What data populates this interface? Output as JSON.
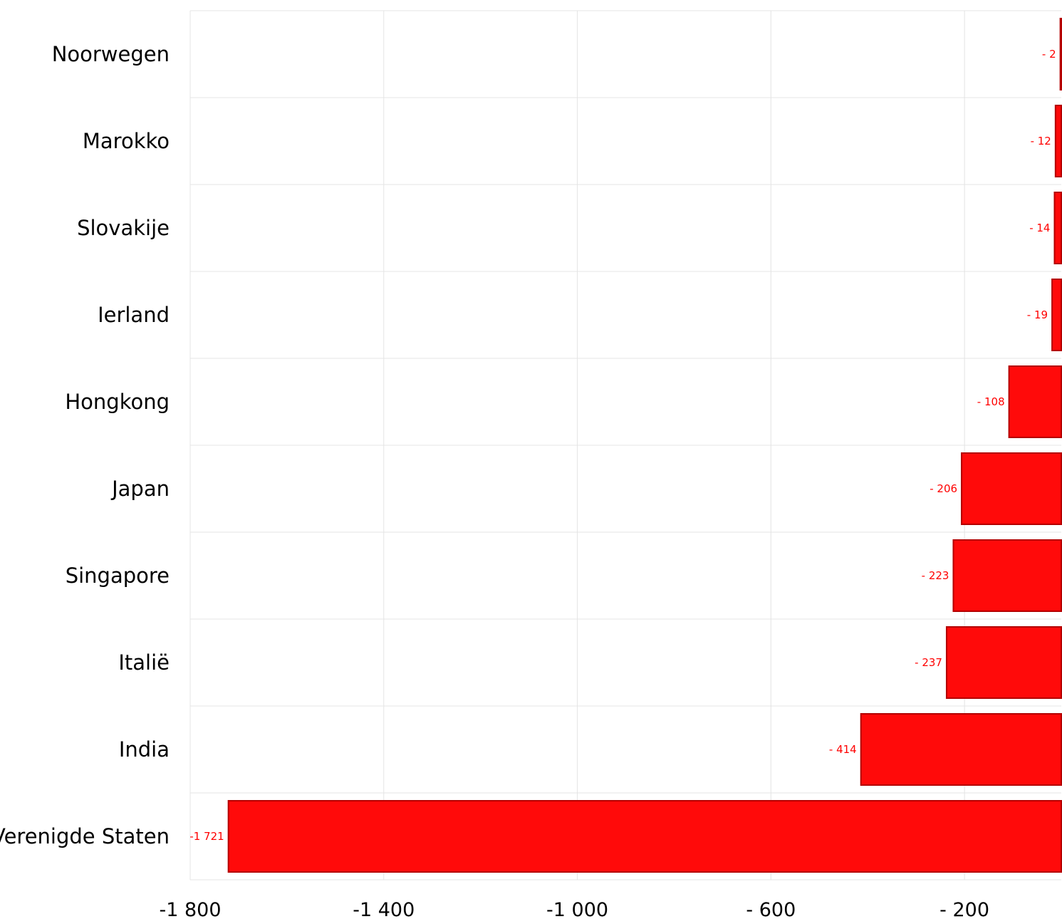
{
  "chart_data": {
    "type": "bar",
    "orientation": "horizontal",
    "title": "",
    "xlabel": "",
    "ylabel": "",
    "categories": [
      "Noorwegen",
      "Marokko",
      "Slovakije",
      "Ierland",
      "Hongkong",
      "Japan",
      "Singapore",
      "Italië",
      "India",
      "Verenigde Staten"
    ],
    "values": [
      -2,
      -12,
      -14,
      -19,
      -108,
      -206,
      -223,
      -237,
      -414,
      -1721
    ],
    "data_labels": [
      "- 2",
      "- 12",
      "- 14",
      "- 19",
      "- 108",
      "- 206",
      "- 223",
      "- 237",
      "- 414",
      "-1 721"
    ],
    "xlim": [
      -1800,
      0
    ],
    "xticks": [
      -1800,
      -1400,
      -1000,
      -600,
      -200
    ],
    "xtick_labels": [
      "-1 800",
      "-1 400",
      "-1 000",
      "- 600",
      "- 200"
    ],
    "grid": true,
    "legend": "none",
    "colors": {
      "bar_fill": "#ff0a0a",
      "bar_stroke": "#b50000",
      "label_text": "#ff0000"
    }
  }
}
